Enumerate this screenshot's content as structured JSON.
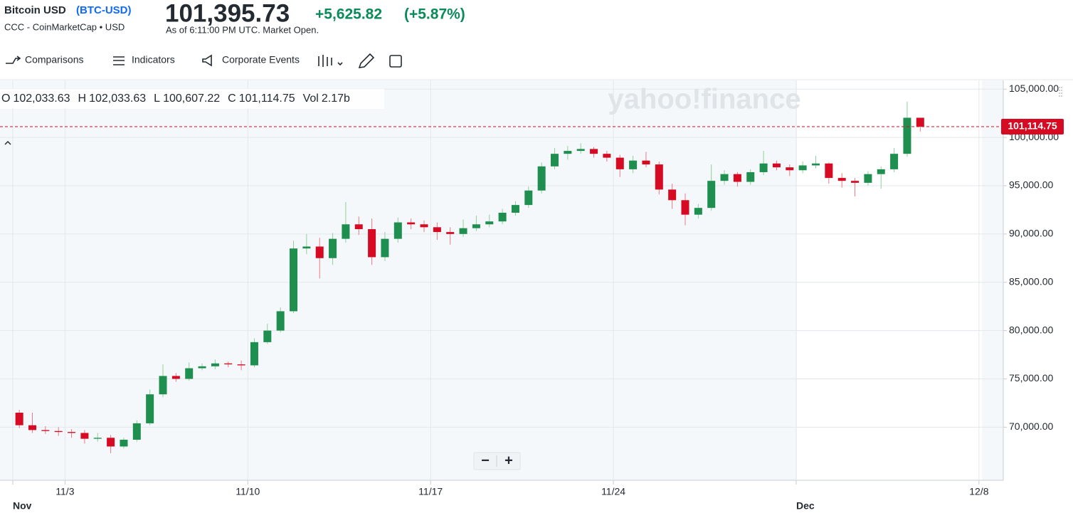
{
  "quote": {
    "title": "(BTC-USD)",
    "name": "Bitcoin USD",
    "source": "CCC - CoinMarketCap • USD",
    "price": "101,395.73",
    "change": "+5,625.82",
    "change_pct": "(+5.87%)",
    "as_of": "As of 6:11:00 PM UTC. Market Open."
  },
  "toolbar": [
    "Comparisons",
    "Indicators",
    "Corporate Events"
  ],
  "zoom": [
    "−",
    "+"
  ],
  "chart_data": {
    "type": "candlestick",
    "watermark": "yahoo!finance",
    "ohlc_header": [
      {
        "label": "O",
        "value": "102,033.63"
      },
      {
        "label": "H",
        "value": "102,033.63"
      },
      {
        "label": "L",
        "value": "100,607.22"
      },
      {
        "label": "C",
        "value": "101,114.75"
      },
      {
        "label": "Vol",
        "value": "2.17b"
      }
    ],
    "up_color": "#1e8f4e",
    "down_color": "#d60a22",
    "grid": true,
    "xlim": [
      -0.49,
      37.93
    ],
    "ylim": [
      64500,
      105900
    ],
    "xticks": [
      {
        "value": 0,
        "label": "Nov"
      },
      {
        "value": 2,
        "label": "11/3"
      },
      {
        "value": 9,
        "label": "11/10"
      },
      {
        "value": 16,
        "label": "11/17"
      },
      {
        "value": 23,
        "label": "11/24"
      },
      {
        "value": 30,
        "label": "Dec"
      },
      {
        "value": 37,
        "label": "12/8"
      }
    ],
    "yticks": [
      {
        "value": 70000,
        "label": "70,000.00"
      },
      {
        "value": 75000,
        "label": "75,000.00"
      },
      {
        "value": 80000,
        "label": "80,000.00"
      },
      {
        "value": 85000,
        "label": "85,000.00"
      },
      {
        "value": 90000,
        "label": "90,000.00"
      },
      {
        "value": 95000,
        "label": "95,000.00"
      },
      {
        "value": 100000,
        "label": "100,000.00"
      },
      {
        "value": 105000,
        "label": "105,000.00"
      }
    ],
    "last_price": {
      "value": 101114.75,
      "label": "101,114.75"
    },
    "candles": [
      {
        "x": 0.25,
        "open": 71500,
        "high": 71800,
        "low": 69900,
        "close": 70200
      },
      {
        "x": 0.75,
        "open": 70200,
        "high": 71500,
        "low": 69400,
        "close": 69700
      },
      {
        "x": 1.25,
        "open": 69700,
        "high": 70100,
        "low": 69300,
        "close": 69600
      },
      {
        "x": 1.75,
        "open": 69600,
        "high": 70000,
        "low": 69100,
        "close": 69500
      },
      {
        "x": 2.25,
        "open": 69500,
        "high": 69800,
        "low": 68900,
        "close": 69400
      },
      {
        "x": 2.75,
        "open": 69400,
        "high": 69700,
        "low": 68300,
        "close": 68800
      },
      {
        "x": 3.25,
        "open": 68800,
        "high": 69400,
        "low": 68500,
        "close": 68900
      },
      {
        "x": 3.75,
        "open": 68900,
        "high": 69200,
        "low": 67300,
        "close": 68000
      },
      {
        "x": 4.25,
        "open": 68000,
        "high": 68900,
        "low": 67800,
        "close": 68700
      },
      {
        "x": 4.75,
        "open": 68700,
        "high": 70700,
        "low": 68500,
        "close": 70400
      },
      {
        "x": 5.25,
        "open": 70400,
        "high": 73900,
        "low": 70200,
        "close": 73400
      },
      {
        "x": 5.75,
        "open": 73400,
        "high": 76500,
        "low": 73100,
        "close": 75300
      },
      {
        "x": 6.25,
        "open": 75300,
        "high": 75600,
        "low": 74700,
        "close": 75000
      },
      {
        "x": 6.75,
        "open": 75000,
        "high": 76700,
        "low": 74800,
        "close": 76100
      },
      {
        "x": 7.25,
        "open": 76100,
        "high": 76600,
        "low": 75900,
        "close": 76300
      },
      {
        "x": 7.75,
        "open": 76300,
        "high": 77000,
        "low": 76000,
        "close": 76600
      },
      {
        "x": 8.25,
        "open": 76600,
        "high": 76800,
        "low": 76200,
        "close": 76500
      },
      {
        "x": 8.75,
        "open": 76500,
        "high": 76900,
        "low": 75900,
        "close": 76400
      },
      {
        "x": 9.25,
        "open": 76400,
        "high": 79200,
        "low": 76200,
        "close": 78800
      },
      {
        "x": 9.75,
        "open": 78800,
        "high": 80700,
        "low": 78600,
        "close": 80000
      },
      {
        "x": 10.25,
        "open": 80000,
        "high": 82400,
        "low": 79800,
        "close": 82000
      },
      {
        "x": 10.75,
        "open": 82000,
        "high": 89300,
        "low": 81800,
        "close": 88500
      },
      {
        "x": 11.25,
        "open": 88500,
        "high": 90000,
        "low": 87900,
        "close": 88700
      },
      {
        "x": 11.75,
        "open": 88700,
        "high": 89600,
        "low": 85400,
        "close": 87500
      },
      {
        "x": 12.25,
        "open": 87500,
        "high": 90100,
        "low": 86800,
        "close": 89500
      },
      {
        "x": 12.75,
        "open": 89500,
        "high": 93300,
        "low": 89100,
        "close": 91000
      },
      {
        "x": 13.25,
        "open": 91000,
        "high": 91800,
        "low": 89900,
        "close": 90500
      },
      {
        "x": 13.75,
        "open": 90500,
        "high": 91600,
        "low": 86800,
        "close": 87600
      },
      {
        "x": 14.25,
        "open": 87600,
        "high": 90200,
        "low": 87200,
        "close": 89500
      },
      {
        "x": 14.75,
        "open": 89500,
        "high": 91700,
        "low": 89100,
        "close": 91200
      },
      {
        "x": 15.25,
        "open": 91200,
        "high": 91600,
        "low": 90500,
        "close": 91000
      },
      {
        "x": 15.75,
        "open": 91000,
        "high": 91400,
        "low": 90200,
        "close": 90700
      },
      {
        "x": 16.25,
        "open": 90700,
        "high": 91200,
        "low": 89400,
        "close": 90200
      },
      {
        "x": 16.75,
        "open": 90200,
        "high": 90700,
        "low": 88900,
        "close": 90000
      },
      {
        "x": 17.25,
        "open": 90000,
        "high": 91500,
        "low": 89700,
        "close": 90600
      },
      {
        "x": 17.75,
        "open": 90600,
        "high": 91900,
        "low": 90300,
        "close": 91000
      },
      {
        "x": 18.25,
        "open": 91000,
        "high": 92000,
        "low": 90700,
        "close": 91300
      },
      {
        "x": 18.75,
        "open": 91300,
        "high": 92600,
        "low": 91000,
        "close": 92200
      },
      {
        "x": 19.25,
        "open": 92200,
        "high": 93400,
        "low": 91900,
        "close": 93000
      },
      {
        "x": 19.75,
        "open": 93000,
        "high": 94900,
        "low": 92700,
        "close": 94500
      },
      {
        "x": 20.25,
        "open": 94500,
        "high": 97400,
        "low": 94200,
        "close": 97000
      },
      {
        "x": 20.75,
        "open": 97000,
        "high": 98900,
        "low": 96700,
        "close": 98300
      },
      {
        "x": 21.25,
        "open": 98300,
        "high": 99100,
        "low": 97700,
        "close": 98600
      },
      {
        "x": 21.75,
        "open": 98600,
        "high": 99400,
        "low": 98300,
        "close": 98800
      },
      {
        "x": 22.25,
        "open": 98800,
        "high": 99000,
        "low": 97900,
        "close": 98300
      },
      {
        "x": 22.75,
        "open": 98300,
        "high": 98600,
        "low": 97500,
        "close": 97900
      },
      {
        "x": 23.25,
        "open": 97900,
        "high": 98200,
        "low": 95900,
        "close": 96700
      },
      {
        "x": 23.75,
        "open": 96700,
        "high": 98100,
        "low": 96300,
        "close": 97600
      },
      {
        "x": 24.25,
        "open": 97600,
        "high": 98500,
        "low": 96900,
        "close": 97200
      },
      {
        "x": 24.75,
        "open": 97200,
        "high": 97500,
        "low": 94100,
        "close": 94600
      },
      {
        "x": 25.25,
        "open": 94600,
        "high": 95200,
        "low": 92600,
        "close": 93500
      },
      {
        "x": 25.75,
        "open": 93500,
        "high": 94200,
        "low": 90900,
        "close": 92000
      },
      {
        "x": 26.25,
        "open": 92000,
        "high": 93100,
        "low": 91600,
        "close": 92700
      },
      {
        "x": 26.75,
        "open": 92700,
        "high": 97200,
        "low": 92400,
        "close": 95500
      },
      {
        "x": 27.25,
        "open": 95500,
        "high": 96600,
        "low": 95100,
        "close": 96200
      },
      {
        "x": 27.75,
        "open": 96200,
        "high": 96400,
        "low": 94900,
        "close": 95400
      },
      {
        "x": 28.25,
        "open": 95400,
        "high": 96700,
        "low": 95100,
        "close": 96400
      },
      {
        "x": 28.75,
        "open": 96400,
        "high": 98600,
        "low": 96100,
        "close": 97300
      },
      {
        "x": 29.25,
        "open": 97300,
        "high": 97600,
        "low": 96600,
        "close": 96900
      },
      {
        "x": 29.75,
        "open": 96900,
        "high": 97200,
        "low": 96000,
        "close": 96600
      },
      {
        "x": 30.25,
        "open": 96600,
        "high": 97500,
        "low": 96300,
        "close": 97100
      },
      {
        "x": 30.75,
        "open": 97100,
        "high": 98100,
        "low": 96800,
        "close": 97300
      },
      {
        "x": 31.25,
        "open": 97300,
        "high": 97400,
        "low": 95200,
        "close": 95800
      },
      {
        "x": 31.75,
        "open": 95800,
        "high": 96300,
        "low": 94800,
        "close": 95500
      },
      {
        "x": 32.25,
        "open": 95500,
        "high": 95800,
        "low": 93900,
        "close": 95300
      },
      {
        "x": 32.75,
        "open": 95300,
        "high": 96500,
        "low": 95000,
        "close": 96200
      },
      {
        "x": 33.25,
        "open": 96200,
        "high": 97000,
        "low": 94700,
        "close": 96700
      },
      {
        "x": 33.75,
        "open": 96700,
        "high": 98900,
        "low": 96400,
        "close": 98300
      },
      {
        "x": 34.25,
        "open": 98300,
        "high": 103700,
        "low": 98000,
        "close": 102033.63
      },
      {
        "x": 34.75,
        "open": 102033.63,
        "high": 102033.63,
        "low": 100607.22,
        "close": 101114.75
      }
    ]
  }
}
